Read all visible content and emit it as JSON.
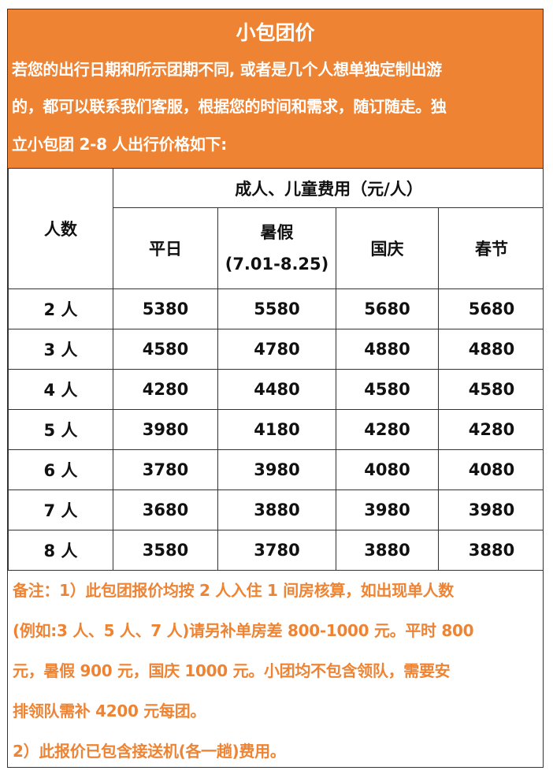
{
  "title": "小包团价",
  "intro_lines": [
    "若您的出行日期和所示团期不同, 或者是几个人想单独定制出游",
    "的，都可以联系我们客服，根据您的时间和需求，随订随走。独",
    "立小包团 2-8 人出行价格如下:"
  ],
  "table": {
    "people_header": "人数",
    "fee_header": "成人、儿童费用（元/人）",
    "columns": [
      "平日",
      "暑假",
      "国庆",
      "春节"
    ],
    "summer_range": "(7.01-8.25)",
    "rows": [
      {
        "people": "2 人",
        "values": [
          "5380",
          "5580",
          "5680",
          "5680"
        ]
      },
      {
        "people": "3 人",
        "values": [
          "4580",
          "4780",
          "4880",
          "4880"
        ]
      },
      {
        "people": "4 人",
        "values": [
          "4280",
          "4480",
          "4580",
          "4580"
        ]
      },
      {
        "people": "5 人",
        "values": [
          "3980",
          "4180",
          "4280",
          "4280"
        ]
      },
      {
        "people": "6 人",
        "values": [
          "3780",
          "3980",
          "4080",
          "4080"
        ]
      },
      {
        "people": "7 人",
        "values": [
          "3680",
          "3880",
          "3980",
          "3980"
        ]
      },
      {
        "people": "8 人",
        "values": [
          "3580",
          "3780",
          "3880",
          "3880"
        ]
      }
    ]
  },
  "notes_lines": [
    "备注：1）此包团报价均按 2 人入住 1 间房核算，如出现单人数",
    "(例如:3 人、5  人、7  人)请另补单房差 800-1000  元。平时 800",
    "元，暑假 900 元，国庆 1000 元。小团均不包含领队，需要安",
    "排领队需补  4200  元每团。",
    "2）此报价已包含接送机(各一趟)费用。"
  ],
  "colors": {
    "accent": "#ee8433",
    "border": "#333333"
  }
}
